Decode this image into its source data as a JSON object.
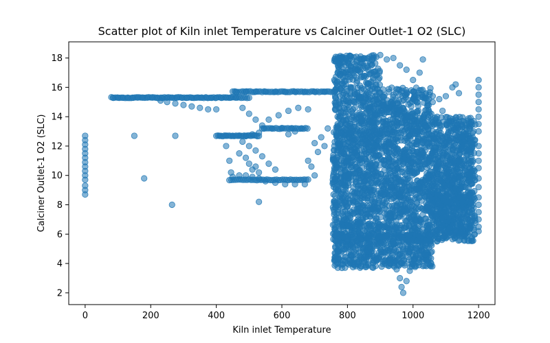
{
  "chart_data": {
    "type": "scatter",
    "title": "Scatter plot of Kiln inlet Temperature vs Calciner Outlet-1 O2 (SLC)",
    "xlabel": "Kiln inlet Temperature",
    "ylabel": "Calciner Outlet-1 O2 (SLC)",
    "xlim": [
      -50,
      1250
    ],
    "ylim": [
      1.2,
      19.1
    ],
    "xticks": [
      0,
      200,
      400,
      600,
      800,
      1000,
      1200
    ],
    "yticks": [
      2,
      4,
      6,
      8,
      10,
      12,
      14,
      16,
      18
    ],
    "grid": false,
    "marker_color": "#1f77b4",
    "marker_opacity": 0.55,
    "series": [
      {
        "points": [
          [
            0,
            12.7
          ],
          [
            0,
            12.4
          ],
          [
            0,
            12.1
          ],
          [
            0,
            11.8
          ],
          [
            0,
            11.5
          ],
          [
            0,
            11.2
          ],
          [
            0,
            10.9
          ],
          [
            0,
            10.6
          ],
          [
            0,
            10.3
          ],
          [
            0,
            10.0
          ],
          [
            0,
            9.7
          ],
          [
            0,
            9.3
          ],
          [
            0,
            9.0
          ],
          [
            0,
            8.7
          ],
          [
            85,
            15.3
          ],
          [
            100,
            15.3
          ],
          [
            115,
            15.3
          ],
          [
            130,
            15.3
          ],
          [
            145,
            15.3
          ],
          [
            160,
            15.3
          ],
          [
            175,
            15.3
          ],
          [
            190,
            15.3
          ],
          [
            205,
            15.3
          ],
          [
            220,
            15.3
          ],
          [
            235,
            15.3
          ],
          [
            250,
            15.3
          ],
          [
            265,
            15.3
          ],
          [
            280,
            15.3
          ],
          [
            295,
            15.3
          ],
          [
            310,
            15.3
          ],
          [
            325,
            15.3
          ],
          [
            340,
            15.3
          ],
          [
            355,
            15.3
          ],
          [
            370,
            15.3
          ],
          [
            385,
            15.3
          ],
          [
            400,
            15.3
          ],
          [
            415,
            15.3
          ],
          [
            430,
            15.3
          ],
          [
            445,
            15.3
          ],
          [
            460,
            15.3
          ],
          [
            230,
            15.1
          ],
          [
            250,
            15.0
          ],
          [
            275,
            14.9
          ],
          [
            300,
            14.8
          ],
          [
            325,
            14.7
          ],
          [
            350,
            14.6
          ],
          [
            375,
            14.5
          ],
          [
            400,
            14.5
          ],
          [
            150,
            12.7
          ],
          [
            275,
            12.7
          ],
          [
            180,
            9.8
          ],
          [
            265,
            8.0
          ],
          [
            530,
            8.2
          ],
          [
            460,
            15.7
          ],
          [
            490,
            15.7
          ],
          [
            520,
            15.7
          ],
          [
            550,
            15.7
          ],
          [
            580,
            15.7
          ],
          [
            610,
            15.7
          ],
          [
            640,
            15.7
          ],
          [
            670,
            15.7
          ],
          [
            700,
            15.7
          ],
          [
            730,
            15.7
          ],
          [
            760,
            15.7
          ],
          [
            410,
            12.7
          ],
          [
            430,
            12.7
          ],
          [
            450,
            12.7
          ],
          [
            470,
            12.7
          ],
          [
            490,
            12.7
          ],
          [
            510,
            12.8
          ],
          [
            530,
            12.9
          ],
          [
            545,
            13.2
          ],
          [
            570,
            13.2
          ],
          [
            600,
            13.2
          ],
          [
            630,
            13.2
          ],
          [
            660,
            13.2
          ],
          [
            480,
            14.6
          ],
          [
            500,
            14.2
          ],
          [
            520,
            13.8
          ],
          [
            540,
            13.4
          ],
          [
            430,
            12.0
          ],
          [
            440,
            11.0
          ],
          [
            445,
            10.2
          ],
          [
            450,
            9.9
          ],
          [
            470,
            10.0
          ],
          [
            490,
            10.0
          ],
          [
            510,
            9.9
          ],
          [
            530,
            9.8
          ],
          [
            550,
            9.6
          ],
          [
            580,
            9.5
          ],
          [
            610,
            9.4
          ],
          [
            640,
            9.4
          ],
          [
            670,
            9.4
          ],
          [
            480,
            12.3
          ],
          [
            500,
            12.0
          ],
          [
            520,
            11.7
          ],
          [
            540,
            11.3
          ],
          [
            560,
            10.8
          ],
          [
            580,
            10.4
          ],
          [
            520,
            10.6
          ],
          [
            530,
            10.2
          ],
          [
            560,
            13.8
          ],
          [
            590,
            14.1
          ],
          [
            620,
            14.4
          ],
          [
            650,
            14.6
          ],
          [
            680,
            14.5
          ],
          [
            470,
            11.5
          ],
          [
            490,
            11.2
          ],
          [
            500,
            10.8
          ],
          [
            510,
            10.4
          ],
          [
            620,
            12.8
          ],
          [
            640,
            13.0
          ],
          [
            680,
            11.0
          ],
          [
            700,
            12.2
          ],
          [
            720,
            12.6
          ],
          [
            740,
            13.2
          ],
          [
            700,
            10.0
          ],
          [
            690,
            10.6
          ],
          [
            710,
            11.6
          ],
          [
            730,
            12.0
          ],
          [
            760,
            17.8
          ],
          [
            780,
            18.0
          ],
          [
            800,
            17.2
          ],
          [
            820,
            16.8
          ],
          [
            840,
            18.1
          ],
          [
            870,
            17.6
          ],
          [
            900,
            18.2
          ],
          [
            920,
            17.9
          ],
          [
            940,
            18.0
          ],
          [
            960,
            17.5
          ],
          [
            980,
            17.2
          ],
          [
            1000,
            16.5
          ],
          [
            1020,
            17.0
          ],
          [
            1030,
            17.9
          ],
          [
            770,
            17.0
          ],
          [
            790,
            16.4
          ],
          [
            810,
            16.0
          ],
          [
            830,
            15.5
          ],
          [
            850,
            15.0
          ],
          [
            880,
            14.5
          ],
          [
            910,
            14.8
          ],
          [
            940,
            14.2
          ],
          [
            970,
            14.6
          ],
          [
            1000,
            15.2
          ],
          [
            1030,
            15.4
          ],
          [
            1060,
            15.0
          ],
          [
            1090,
            14.4
          ],
          [
            1110,
            13.6
          ],
          [
            1130,
            12.8
          ],
          [
            760,
            16.5
          ],
          [
            765,
            15.0
          ],
          [
            770,
            13.5
          ],
          [
            760,
            12.0
          ],
          [
            765,
            10.5
          ],
          [
            770,
            9.0
          ],
          [
            760,
            7.5
          ],
          [
            765,
            6.0
          ],
          [
            770,
            4.8
          ],
          [
            760,
            4.2
          ],
          [
            780,
            14.0
          ],
          [
            790,
            12.5
          ],
          [
            800,
            11.0
          ],
          [
            780,
            9.5
          ],
          [
            795,
            8.0
          ],
          [
            785,
            6.5
          ],
          [
            790,
            5.0
          ],
          [
            800,
            4.0
          ],
          [
            820,
            13.8
          ],
          [
            840,
            12.2
          ],
          [
            860,
            10.6
          ],
          [
            880,
            9.0
          ],
          [
            860,
            7.4
          ],
          [
            840,
            6.0
          ],
          [
            860,
            4.8
          ],
          [
            880,
            4.2
          ],
          [
            900,
            13.0
          ],
          [
            920,
            11.5
          ],
          [
            940,
            10.0
          ],
          [
            960,
            8.5
          ],
          [
            920,
            7.0
          ],
          [
            940,
            5.5
          ],
          [
            960,
            4.6
          ],
          [
            950,
            3.6
          ],
          [
            960,
            3.0
          ],
          [
            965,
            2.4
          ],
          [
            970,
            2.0
          ],
          [
            980,
            2.8
          ],
          [
            990,
            3.5
          ],
          [
            1000,
            12.8
          ],
          [
            1020,
            11.2
          ],
          [
            1040,
            9.6
          ],
          [
            1060,
            8.0
          ],
          [
            1020,
            6.6
          ],
          [
            1040,
            5.4
          ],
          [
            1010,
            4.6
          ],
          [
            1000,
            4.0
          ],
          [
            1080,
            11.8
          ],
          [
            1100,
            10.5
          ],
          [
            1120,
            9.5
          ],
          [
            1140,
            8.5
          ],
          [
            1100,
            7.2
          ],
          [
            1120,
            6.6
          ],
          [
            1130,
            6.2
          ],
          [
            1150,
            6.6
          ],
          [
            1160,
            6.5
          ],
          [
            1170,
            7.8
          ],
          [
            1130,
            11.0
          ],
          [
            1150,
            10.0
          ],
          [
            1160,
            9.2
          ],
          [
            1170,
            10.1
          ],
          [
            1175,
            8.2
          ],
          [
            1180,
            7.6
          ],
          [
            1200,
            16.5
          ],
          [
            1200,
            16.0
          ],
          [
            1200,
            15.5
          ],
          [
            1200,
            15.0
          ],
          [
            1200,
            14.5
          ],
          [
            1200,
            14.0
          ],
          [
            1200,
            13.5
          ],
          [
            1200,
            13.0
          ],
          [
            1200,
            12.0
          ],
          [
            1200,
            11.5
          ],
          [
            1200,
            11.0
          ],
          [
            1200,
            10.5
          ],
          [
            1200,
            9.8
          ],
          [
            1200,
            9.2
          ],
          [
            1200,
            8.5
          ],
          [
            1200,
            8.0
          ],
          [
            1200,
            7.5
          ],
          [
            1200,
            7.0
          ],
          [
            1200,
            6.5
          ],
          [
            1200,
            6.2
          ],
          [
            790,
            7.0
          ],
          [
            800,
            5.6
          ],
          [
            810,
            4.6
          ],
          [
            830,
            4.0
          ],
          [
            850,
            4.4
          ],
          [
            870,
            5.0
          ],
          [
            890,
            4.2
          ],
          [
            910,
            4.8
          ],
          [
            930,
            4.0
          ],
          [
            970,
            4.2
          ],
          [
            990,
            4.8
          ],
          [
            1010,
            5.0
          ],
          [
            850,
            11.8
          ],
          [
            870,
            12.6
          ],
          [
            890,
            12.9
          ],
          [
            910,
            12.6
          ],
          [
            930,
            12.1
          ],
          [
            950,
            11.5
          ],
          [
            970,
            10.8
          ],
          [
            990,
            10.2
          ],
          [
            1010,
            13.5
          ],
          [
            1030,
            13.0
          ],
          [
            1050,
            12.5
          ],
          [
            1070,
            11.9
          ],
          [
            1090,
            11.2
          ],
          [
            1110,
            10.4
          ],
          [
            1125,
            9.8
          ],
          [
            1140,
            9.0
          ],
          [
            1150,
            8.2
          ],
          [
            980,
            15.6
          ],
          [
            1000,
            15.7
          ],
          [
            1020,
            15.8
          ],
          [
            1040,
            15.6
          ],
          [
            1060,
            15.4
          ],
          [
            1080,
            15.2
          ],
          [
            1100,
            15.4
          ],
          [
            1120,
            16.0
          ],
          [
            1130,
            16.2
          ],
          [
            1140,
            15.6
          ]
        ]
      }
    ],
    "dense_regions": [
      {
        "x": [
          755,
          1190
        ],
        "y": [
          5.5,
          14.0
        ],
        "density": 0.92
      },
      {
        "x": [
          760,
          1060
        ],
        "y": [
          3.7,
          6.0
        ],
        "density": 0.9
      },
      {
        "x": [
          760,
          900
        ],
        "y": [
          14.0,
          18.2
        ],
        "density": 0.75
      },
      {
        "x": [
          900,
          1060
        ],
        "y": [
          14.0,
          16.0
        ],
        "density": 0.7
      },
      {
        "x": [
          1060,
          1150
        ],
        "y": [
          6.0,
          11.0
        ],
        "density": 0.55
      }
    ],
    "band_markers": [
      {
        "x": [
          80,
          500
        ],
        "y": 15.3,
        "step": 6
      },
      {
        "x": [
          450,
          770
        ],
        "y": 15.7,
        "step": 6
      },
      {
        "x": [
          400,
          530
        ],
        "y": 12.7,
        "step": 5
      },
      {
        "x": [
          540,
          680
        ],
        "y": 13.2,
        "step": 6
      },
      {
        "x": [
          440,
          680
        ],
        "y": 9.7,
        "step": 6
      }
    ]
  }
}
